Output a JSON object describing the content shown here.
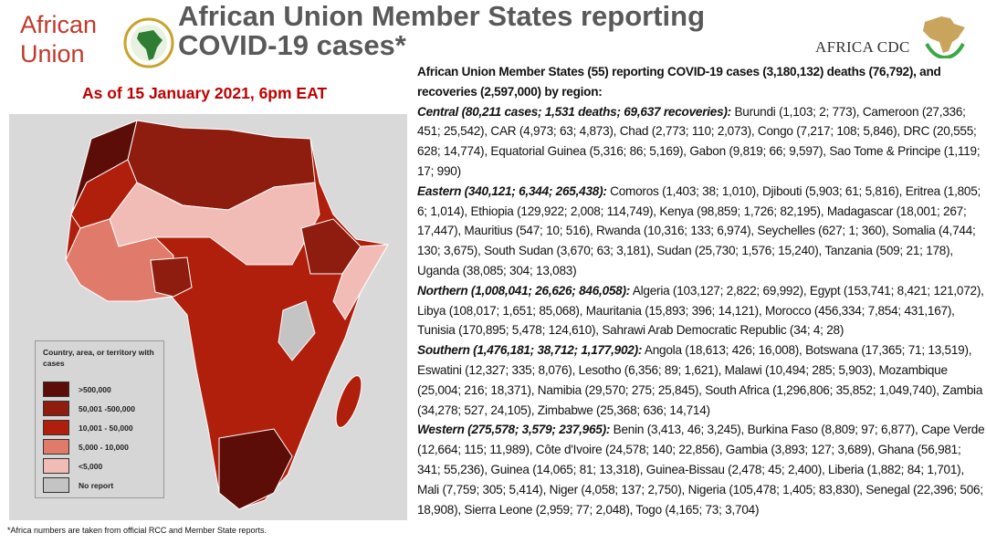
{
  "header": {
    "title_line1": "African Union Member States reporting",
    "title_line2": "COVID-19 cases*",
    "date": "As of 15 January 2021, 6pm EAT"
  },
  "logos": {
    "au_line1": "African",
    "au_line2": "Union",
    "cdc": "AFRICA CDC"
  },
  "legend": {
    "title": "Country, area, or territory with cases",
    "items": [
      {
        "label": ">500,000",
        "color": "#5c0d08"
      },
      {
        "label": "50,001 -500,000",
        "color": "#8e1d10"
      },
      {
        "label": "10,001 - 50,000",
        "color": "#b01f0c"
      },
      {
        "label": "5,000 - 10,000",
        "color": "#e07b6c"
      },
      {
        "label": "<5,000",
        "color": "#f2bcb6"
      },
      {
        "label": "No report",
        "color": "#c4c4c4"
      }
    ]
  },
  "footnote": "*Africa numbers are taken from official RCC and Member State reports.",
  "summary": {
    "intro": "African Union Member States (55) reporting COVID-19 cases (3,180,132) deaths (76,792), and recoveries (2,597,000) by region:",
    "regions": [
      {
        "head": "Central (80,211 cases; 1,531 deaths; 69,637 recoveries):",
        "body": " Burundi (1,103; 2; 773), Cameroon (27,336; 451; 25,542), CAR (4,973; 63; 4,873), Chad (2,773; 110; 2,073), Congo (7,217; 108; 5,846), DRC (20,555; 628; 14,774), Equatorial Guinea (5,316; 86; 5,169), Gabon (9,819; 66; 9,597), Sao Tome & Principe (1,119; 17; 990)"
      },
      {
        "head": "Eastern (340,121; 6,344; 265,438):",
        "body": " Comoros (1,403; 38; 1,010), Djibouti (5,903; 61; 5,816), Eritrea (1,805; 6; 1,014), Ethiopia (129,922; 2,008; 114,749), Kenya (98,859; 1,726; 82,195), Madagascar (18,001; 267; 17,447), Mauritius (547; 10; 516), Rwanda (10,316; 133; 6,974), Seychelles (627; 1; 360), Somalia (4,744; 130; 3,675), South Sudan (3,670; 63; 3,181), Sudan (25,730; 1,576; 15,240), Tanzania (509; 21; 178), Uganda (38,085; 304; 13,083)"
      },
      {
        "head": "Northern (1,008,041; 26,626; 846,058):",
        "body": " Algeria (103,127; 2,822; 69,992), Egypt (153,741; 8,421; 121,072), Libya (108,017; 1,651; 85,068), Mauritania (15,893; 396; 14,121), Morocco (456,334; 7,854; 431,167), Tunisia (170,895; 5,478; 124,610), Sahrawi Arab Democratic Republic (34; 4; 28)"
      },
      {
        "head": "Southern (1,476,181; 38,712; 1,177,902):",
        "body": " Angola (18,613; 426; 16,008), Botswana (17,365; 71; 13,519), Eswatini (12,327; 335; 8,076), Lesotho (6,356; 89; 1,621), Malawi (10,494; 285; 5,903), Mozambique (25,004; 216; 18,371), Namibia (29,570; 275; 25,845), South Africa (1,296,806; 35,852; 1,049,740), Zambia (34,278; 527, 24,105), Zimbabwe (25,368; 636; 14,714)"
      },
      {
        "head": "Western (275,578; 3,579; 237,965):",
        "body": " Benin (3,413, 46; 3,245), Burkina Faso (8,809; 97; 6,877), Cape Verde (12,664; 115; 11,989), Côte d'Ivoire (24,578; 140; 22,856), Gambia (3,893; 127; 3,689), Ghana (56,981; 341; 55,236), Guinea (14,065; 81; 13,318), Guinea-Bissau (2,478; 45; 2,400), Liberia (1,882; 84; 1,701), Mali (7,759; 305; 5,414), Niger (4,058; 137; 2,750), Nigeria (105,478; 1,405; 83,830), Senegal (22,396; 506; 18,908), Sierra Leone (2,959; 77; 2,048), Togo (4,165; 73; 3,704)"
      }
    ]
  }
}
